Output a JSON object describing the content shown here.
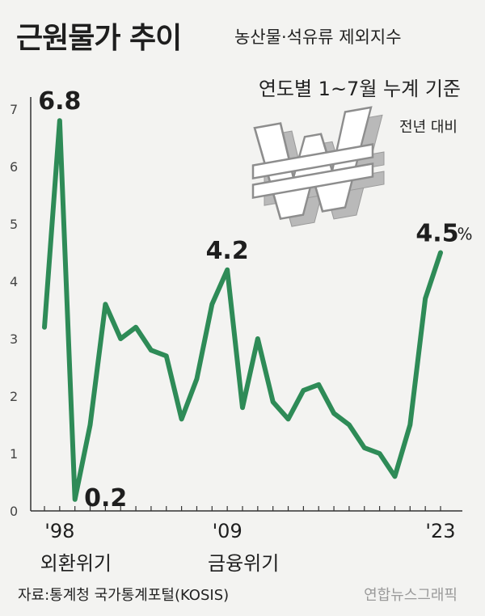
{
  "header": {
    "title": "근원물가 추이",
    "subtitle": "농산물·석유류 제외지수",
    "basis": "연도별 1~7월 누계 기준",
    "comparison": "전년 대비"
  },
  "footer": {
    "source": "자료:통계청 국가통계포털(KOSIS)",
    "credit": "연합뉴스그래픽"
  },
  "colors": {
    "line": "#2e8b57",
    "axis": "#333333",
    "background": "#f3f3f1"
  },
  "decor": {
    "icon": "won-currency-icon"
  },
  "chart_data": {
    "type": "line",
    "x": [
      1997,
      1998,
      1999,
      2000,
      2001,
      2002,
      2003,
      2004,
      2005,
      2006,
      2007,
      2008,
      2009,
      2010,
      2011,
      2012,
      2013,
      2014,
      2015,
      2016,
      2017,
      2018,
      2019,
      2020,
      2021,
      2022,
      2023
    ],
    "series": [
      {
        "values": [
          3.2,
          6.8,
          0.2,
          1.5,
          3.6,
          3.0,
          3.2,
          2.8,
          2.7,
          1.6,
          2.3,
          3.6,
          4.2,
          1.8,
          3.0,
          1.9,
          1.6,
          2.1,
          2.2,
          1.7,
          1.5,
          1.1,
          1.0,
          0.6,
          1.5,
          3.7,
          4.5
        ]
      }
    ],
    "ylim": [
      0,
      7
    ],
    "yticks": [
      "0",
      "1",
      "2",
      "3",
      "4",
      "5",
      "6",
      "7"
    ],
    "xtick_labels": [
      {
        "x": 1998,
        "label": "'98",
        "event": "외환위기"
      },
      {
        "x": 2009,
        "label": "'09",
        "event": "금융위기"
      },
      {
        "x": 2023,
        "label": "'23",
        "event": ""
      }
    ],
    "annotations": [
      {
        "x": 1998,
        "label": "6.8"
      },
      {
        "x": 1999,
        "label": "0.2"
      },
      {
        "x": 2009,
        "label": "4.2"
      },
      {
        "x": 2023,
        "label": "4.5",
        "unit": "%"
      }
    ],
    "grid": false,
    "legend": "none"
  }
}
